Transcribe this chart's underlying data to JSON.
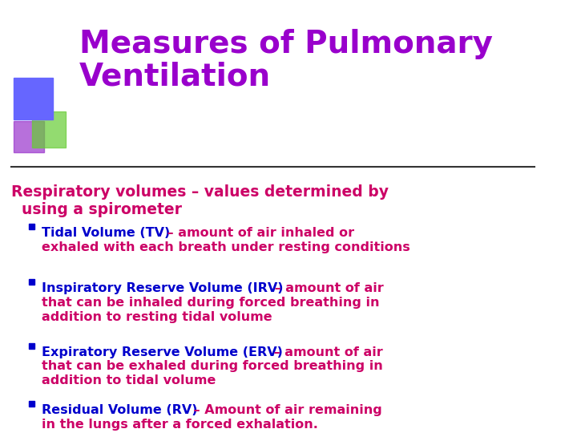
{
  "title_line1": "Measures of Pulmonary",
  "title_line2": "Ventilation",
  "title_color": "#9900cc",
  "background_color": "#ffffff",
  "header_text": "Respiratory volumes – values determined by using a spirometer",
  "header_color": "#cc0066",
  "bullet_color": "#0000cc",
  "dash_color": "#cc0066",
  "bullets": [
    {
      "bold_part": "Tidal Volume (TV)",
      "rest": " – amount of air inhaled or exhaled with each breath under resting conditions"
    },
    {
      "bold_part": "Inspiratory Reserve Volume (IRV)",
      "rest": " – amount of air that can be inhaled during forced breathing in addition to resting tidal volume"
    },
    {
      "bold_part": "Expiratory Reserve Volume (ERV)",
      "rest": " – amount of air that can be exhaled during forced breathing in addition to tidal volume"
    },
    {
      "bold_part": "Residual Volume (RV)",
      "rest": " – Amount of air remaining in the lungs after a forced exhalation."
    }
  ],
  "square_colors": [
    "#6666ff",
    "#9933cc",
    "#66cc33"
  ],
  "divider_color": "#333333",
  "font_family": "DejaVu Sans"
}
